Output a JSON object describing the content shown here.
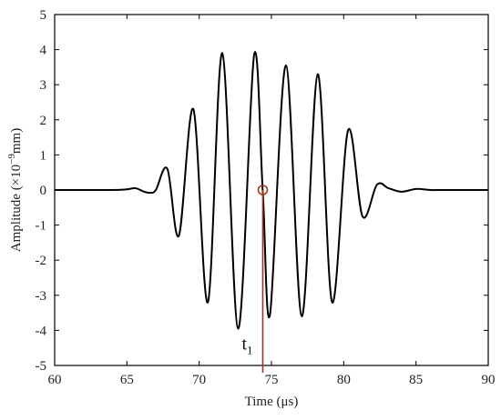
{
  "chart_data": {
    "type": "line",
    "xlabel": "Time (μs)",
    "ylabel_prefix": "Amplitude (×10",
    "ylabel_exp": "−9",
    "ylabel_suffix": "mm)",
    "xlim": [
      60,
      90
    ],
    "ylim": [
      -5,
      5
    ],
    "x_ticks": [
      "60",
      "65",
      "70",
      "75",
      "80",
      "85",
      "90"
    ],
    "y_ticks": [
      "-5",
      "-4",
      "-3",
      "-2",
      "-1",
      "0",
      "1",
      "2",
      "3",
      "4",
      "5"
    ],
    "grid": false,
    "series": [
      {
        "color": "#000000",
        "x": [
          60,
          64,
          65,
          65.6,
          66.2,
          66.6,
          67.0,
          67.8,
          68.6,
          69.6,
          70.6,
          71.6,
          72.7,
          73.8,
          74.4,
          74.9,
          76.0,
          77.1,
          78.2,
          79.2,
          80.3,
          81.3,
          82.3,
          83.1,
          84.0,
          85.0,
          86.0,
          87,
          90
        ],
        "y": [
          0,
          0,
          0.02,
          0.05,
          -0.05,
          -0.08,
          0.0,
          0.6,
          -1.3,
          2.3,
          -3.2,
          3.9,
          -3.95,
          3.85,
          -0.05,
          -3.55,
          3.55,
          -3.6,
          3.3,
          -3.2,
          1.7,
          -0.75,
          0.15,
          0.05,
          -0.05,
          0.03,
          0.0,
          0,
          0
        ]
      }
    ],
    "annotations": {
      "point_x": 74.4,
      "point_y": 0,
      "line_color": "#a03a1c",
      "label": "t",
      "label_sub": "1"
    }
  }
}
